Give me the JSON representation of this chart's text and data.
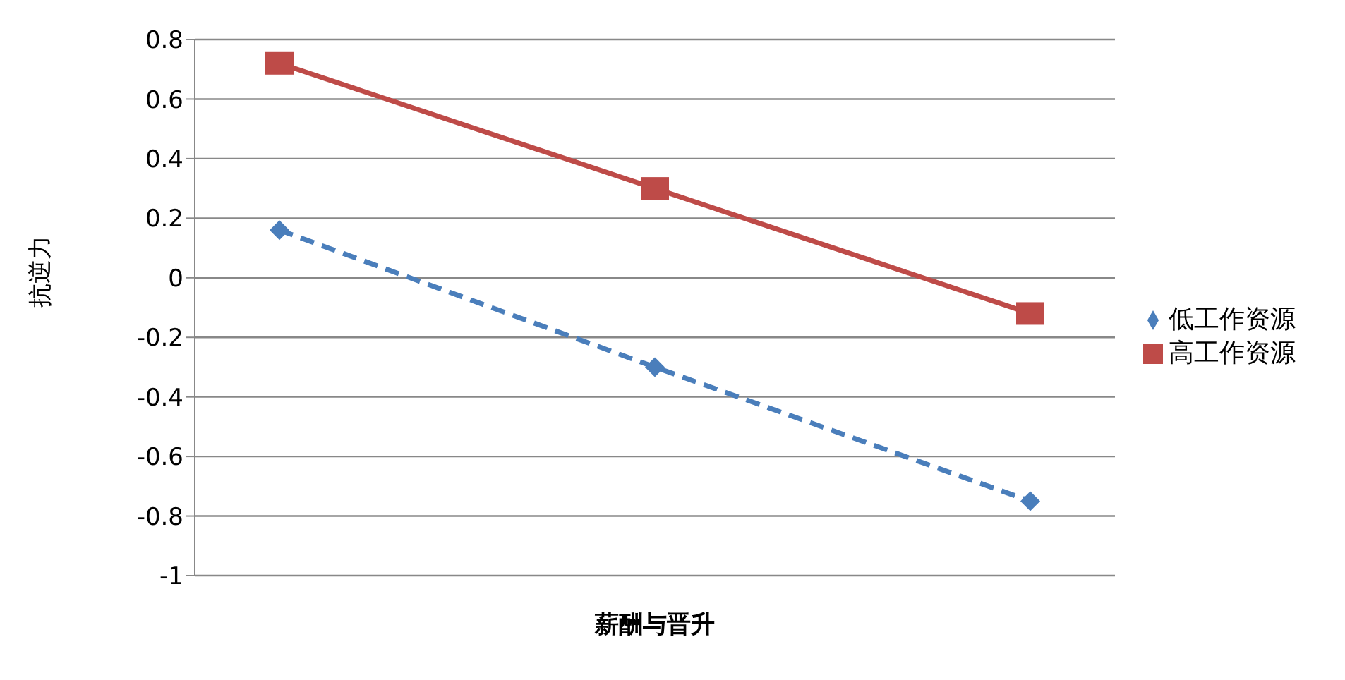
{
  "chart_data": {
    "type": "line",
    "xlabel": "薪酬与晋升",
    "ylabel": "抗逆力",
    "categories": [
      null,
      null,
      null
    ],
    "series": [
      {
        "name": "低工作资源",
        "color": "#4a7ebb",
        "values": [
          0.16,
          -0.3,
          -0.75
        ],
        "marker": "diamond",
        "line_style": "dashed"
      },
      {
        "name": "高工作资源",
        "color": "#be4b48",
        "values": [
          0.72,
          0.3,
          -0.12
        ],
        "marker": "square",
        "line_style": "solid"
      }
    ],
    "ylim": [
      -1,
      0.8
    ],
    "yticks": [
      -1,
      -0.8,
      -0.6,
      -0.4,
      -0.2,
      0,
      0.2,
      0.4,
      0.6,
      0.8
    ],
    "grid": "y",
    "legend": "right"
  }
}
